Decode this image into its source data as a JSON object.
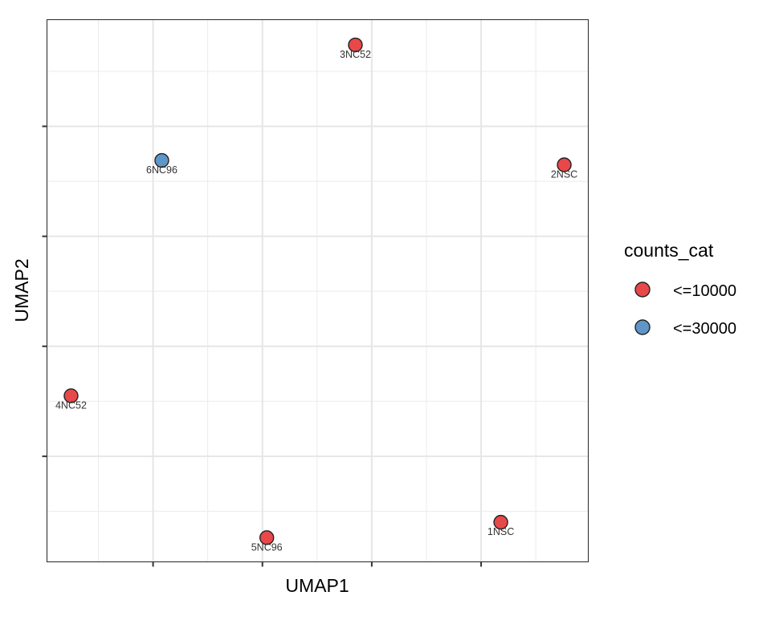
{
  "chart_data": {
    "type": "scatter",
    "xlabel": "UMAP1",
    "ylabel": "UMAP2",
    "xlim": [
      0.03,
      4.98
    ],
    "ylim": [
      0.04,
      4.97
    ],
    "x_major_ticks": [
      1,
      2,
      3,
      4
    ],
    "y_major_ticks": [
      1,
      2,
      3,
      4
    ],
    "tick_labels_shown": false,
    "grid": true,
    "legend": {
      "title": "counts_cat",
      "placement": "right",
      "entries": [
        {
          "label": "<=10000",
          "color": "#E8484A"
        },
        {
          "label": "<=30000",
          "color": "#5E96C8"
        }
      ]
    },
    "points": [
      {
        "label": "3NC52",
        "x": 2.85,
        "y": 4.74,
        "category": "<=10000"
      },
      {
        "label": "6NC96",
        "x": 1.08,
        "y": 3.69,
        "category": "<=30000"
      },
      {
        "label": "2NSC",
        "x": 4.76,
        "y": 3.65,
        "category": "<=10000"
      },
      {
        "label": "4NC52",
        "x": 0.25,
        "y": 1.55,
        "category": "<=10000"
      },
      {
        "label": "5NC96",
        "x": 2.04,
        "y": 0.26,
        "category": "<=10000"
      },
      {
        "label": "1NSC",
        "x": 4.18,
        "y": 0.4,
        "category": "<=10000"
      }
    ]
  }
}
